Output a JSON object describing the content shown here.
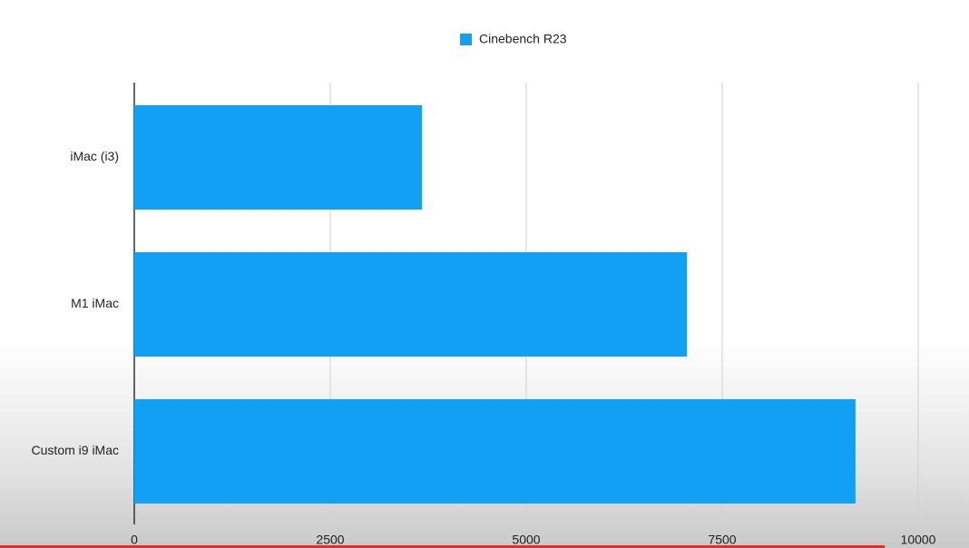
{
  "chart_data": {
    "type": "bar",
    "horizontal": true,
    "categories": [
      "iMac (i3)",
      "M1 iMac",
      "Custom i9 iMac"
    ],
    "series": [
      {
        "name": "Cinebench R23",
        "color": "#12a0f5",
        "values": [
          3670,
          7050,
          9200
        ]
      }
    ],
    "xlim": [
      0,
      10000
    ],
    "xticks": [
      0,
      2500,
      5000,
      7500,
      10000
    ],
    "grid": true
  }
}
